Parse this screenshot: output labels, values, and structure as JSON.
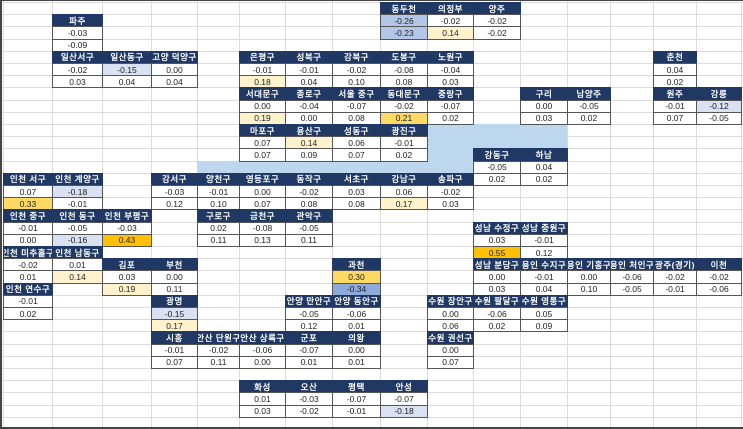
{
  "palette": {
    "header_bg": "#1f3864",
    "river": "#bdd7ee",
    "high_1": "#fff2cc",
    "high_2": "#ffd966",
    "high_3": "#ffc000",
    "low_1": "#d9e1f2",
    "low_2": "#b4c6e7",
    "low_3": "#8eaadb"
  },
  "districts": [
    {
      "name": "동두천",
      "values": [
        "-0.26",
        "-0.23"
      ]
    },
    {
      "name": "의정부",
      "values": [
        "-0.02",
        "0.14"
      ]
    },
    {
      "name": "양주",
      "values": [
        "-0.02",
        "-0.02"
      ]
    },
    {
      "name": "파주",
      "values": [
        "-0.03",
        "-0.09"
      ]
    },
    {
      "name": "일산서구",
      "values": [
        "-0.02",
        "0.03"
      ]
    },
    {
      "name": "일산동구",
      "values": [
        "-0.15",
        "0.04"
      ]
    },
    {
      "name": "고양 덕양구",
      "values": [
        "0.00",
        "0.04"
      ]
    },
    {
      "name": "은평구",
      "values": [
        "-0.01",
        "0.18"
      ]
    },
    {
      "name": "성북구",
      "values": [
        "-0.01",
        "0.04"
      ]
    },
    {
      "name": "강북구",
      "values": [
        "-0.02",
        "0.10"
      ]
    },
    {
      "name": "도봉구",
      "values": [
        "-0.08",
        "0.08"
      ]
    },
    {
      "name": "노원구",
      "values": [
        "-0.04",
        "0.03"
      ]
    },
    {
      "name": "춘천",
      "values": [
        "0.04",
        "0.02"
      ]
    },
    {
      "name": "서대문구",
      "values": [
        "0.00",
        "0.19"
      ]
    },
    {
      "name": "종로구",
      "values": [
        "-0.04",
        "0.00"
      ]
    },
    {
      "name": "서울 중구",
      "values": [
        "-0.07",
        "0.08"
      ]
    },
    {
      "name": "동대문구",
      "values": [
        "-0.02",
        "0.21"
      ]
    },
    {
      "name": "중랑구",
      "values": [
        "-0.07",
        "0.02"
      ]
    },
    {
      "name": "구리",
      "values": [
        "0.00",
        "0.03"
      ]
    },
    {
      "name": "남양주",
      "values": [
        "-0.05",
        "0.02"
      ]
    },
    {
      "name": "원주",
      "values": [
        "-0.01",
        "0.07"
      ]
    },
    {
      "name": "강릉",
      "values": [
        "-0.12",
        "-0.05"
      ]
    },
    {
      "name": "마포구",
      "values": [
        "0.07",
        "0.07"
      ]
    },
    {
      "name": "용산구",
      "values": [
        "0.14",
        "0.09"
      ]
    },
    {
      "name": "성동구",
      "values": [
        "0.06",
        "0.07"
      ]
    },
    {
      "name": "광진구",
      "values": [
        "-0.01",
        "0.02"
      ]
    },
    {
      "name": "강동구",
      "values": [
        "-0.05",
        "0.02"
      ]
    },
    {
      "name": "하남",
      "values": [
        "0.04",
        "0.02"
      ]
    },
    {
      "name": "인천 서구",
      "values": [
        "0.07",
        "0.33"
      ]
    },
    {
      "name": "인천 계양구",
      "values": [
        "-0.18",
        "-0.01"
      ]
    },
    {
      "name": "강서구",
      "values": [
        "-0.03",
        "0.12"
      ]
    },
    {
      "name": "양천구",
      "values": [
        "-0.01",
        "0.10"
      ]
    },
    {
      "name": "영등포구",
      "values": [
        "0.00",
        "0.07"
      ]
    },
    {
      "name": "동작구",
      "values": [
        "-0.02",
        "0.08"
      ]
    },
    {
      "name": "서초구",
      "values": [
        "0.03",
        "0.08"
      ]
    },
    {
      "name": "강남구",
      "values": [
        "0.06",
        "0.17"
      ]
    },
    {
      "name": "송파구",
      "values": [
        "-0.02",
        "0.03"
      ]
    },
    {
      "name": "인천 중구",
      "values": [
        "-0.01",
        "0.00"
      ]
    },
    {
      "name": "인천 동구",
      "values": [
        "-0.05",
        "-0.16"
      ]
    },
    {
      "name": "인천 부평구",
      "values": [
        "-0.03",
        "0.43"
      ]
    },
    {
      "name": "구로구",
      "values": [
        "0.02",
        "0.11"
      ]
    },
    {
      "name": "금천구",
      "values": [
        "-0.08",
        "0.13"
      ]
    },
    {
      "name": "관악구",
      "values": [
        "-0.05",
        "0.11"
      ]
    },
    {
      "name": "성남 수정구",
      "values": [
        "0.03",
        "0.55"
      ]
    },
    {
      "name": "성남 중원구",
      "values": [
        "-0.01",
        "0.12"
      ]
    },
    {
      "name": "인천 미추홀구",
      "values": [
        "-0.02",
        "0.01"
      ]
    },
    {
      "name": "인천 남동구",
      "values": [
        "0.01",
        "0.14"
      ]
    },
    {
      "name": "김포",
      "values": [
        "0.03",
        "0.19"
      ]
    },
    {
      "name": "부천",
      "values": [
        "0.00",
        "0.11"
      ]
    },
    {
      "name": "과천",
      "values": [
        "0.30",
        "-0.34"
      ]
    },
    {
      "name": "성남 분당구",
      "values": [
        "0.00",
        "0.03"
      ]
    },
    {
      "name": "용인 수지구",
      "values": [
        "-0.01",
        "0.04"
      ]
    },
    {
      "name": "용인 기흥구",
      "values": [
        "0.00",
        "0.10"
      ]
    },
    {
      "name": "용인 처인구",
      "values": [
        "-0.06",
        "-0.05"
      ]
    },
    {
      "name": "광주(경기)",
      "values": [
        "-0.02",
        "-0.01"
      ]
    },
    {
      "name": "이천",
      "values": [
        "-0.02",
        "-0.06"
      ]
    },
    {
      "name": "인천 연수구",
      "values": [
        "-0.01",
        "0.02"
      ]
    },
    {
      "name": "광명",
      "values": [
        "-0.15",
        "0.17"
      ]
    },
    {
      "name": "안양 만안구",
      "values": [
        "-0.05",
        "0.12"
      ]
    },
    {
      "name": "안양 동안구",
      "values": [
        "-0.06",
        "0.01"
      ]
    },
    {
      "name": "수원 장안구",
      "values": [
        "0.00",
        "0.06"
      ]
    },
    {
      "name": "수원 팔달구",
      "values": [
        "-0.06",
        "0.02"
      ]
    },
    {
      "name": "수원 영통구",
      "values": [
        "0.05",
        "0.09"
      ]
    },
    {
      "name": "시흥",
      "values": [
        "-0.01",
        "0.07"
      ]
    },
    {
      "name": "안산 단원구",
      "values": [
        "-0.02",
        "0.11"
      ]
    },
    {
      "name": "안산 상록구",
      "values": [
        "-0.06",
        "0.00"
      ]
    },
    {
      "name": "군포",
      "values": [
        "-0.07",
        "0.01"
      ]
    },
    {
      "name": "의왕",
      "values": [
        "0.00",
        "0.01"
      ]
    },
    {
      "name": "수원 권선구",
      "values": [
        "0.00",
        "0.07"
      ]
    },
    {
      "name": "화성",
      "values": [
        "0.01",
        "0.03"
      ]
    },
    {
      "name": "오산",
      "values": [
        "-0.03",
        "-0.02"
      ]
    },
    {
      "name": "평택",
      "values": [
        "-0.07",
        "-0.01"
      ]
    },
    {
      "name": "안성",
      "values": [
        "-0.07",
        "-0.18"
      ]
    }
  ]
}
